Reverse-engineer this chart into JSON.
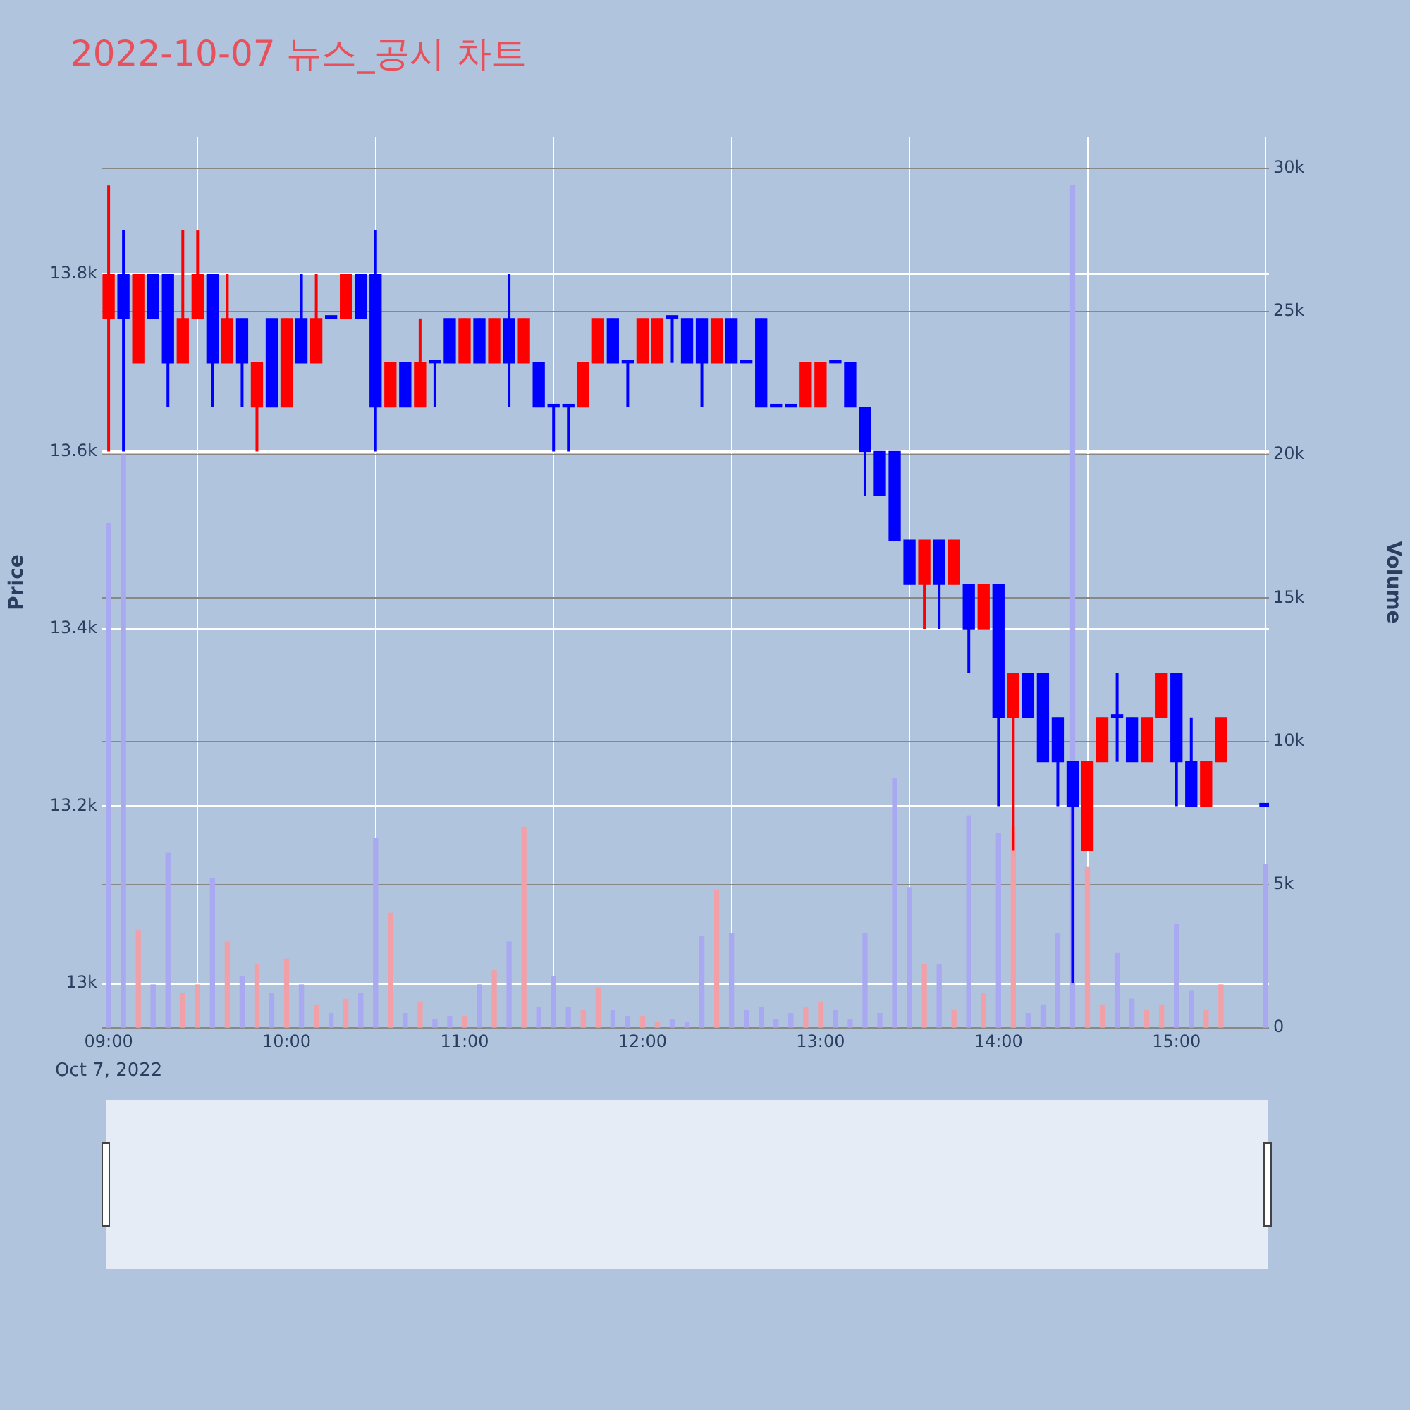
{
  "chart_data": {
    "type": "candlestick",
    "title": "2022-10-07 뉴스_공시 차트",
    "ylabel": "Price",
    "y2label": "Volume",
    "annotations": [
      "Oct 7, 2022"
    ],
    "grid": true,
    "xlim": [
      8.96,
      15.52
    ],
    "xticks": [
      {
        "value": 9,
        "label": "09:00"
      },
      {
        "value": 10,
        "label": "10:00"
      },
      {
        "value": 11,
        "label": "11:00"
      },
      {
        "value": 12,
        "label": "12:00"
      },
      {
        "value": 13,
        "label": "13:00"
      },
      {
        "value": 14,
        "label": "14:00"
      },
      {
        "value": 15,
        "label": "15:00"
      }
    ],
    "ylim": [
      12950,
      13955
    ],
    "yticks": [
      {
        "value": 13000,
        "label": "13k"
      },
      {
        "value": 13200,
        "label": "13.2k"
      },
      {
        "value": 13400,
        "label": "13.4k"
      },
      {
        "value": 13600,
        "label": "13.6k"
      },
      {
        "value": 13800,
        "label": "13.8k"
      }
    ],
    "y2lim": [
      0,
      31100
    ],
    "y2ticks": [
      0,
      {
        "value": 5000,
        "label": "5k"
      },
      {
        "value": 10000,
        "label": "10k"
      },
      {
        "value": 15000,
        "label": "15k"
      },
      {
        "value": 20000,
        "label": "20k"
      },
      {
        "value": 25000,
        "label": "25k"
      },
      {
        "value": 30000,
        "label": "30k"
      }
    ],
    "series": [
      {
        "x": [
          9,
          9.0833,
          9.1667,
          9.25,
          9.3333,
          9.4167,
          9.5,
          9.5833,
          9.6667,
          9.75,
          9.8333,
          9.9167,
          10,
          10.0833,
          10.1667,
          10.25,
          10.3333,
          10.4167,
          10.5,
          10.5833,
          10.6667,
          10.75,
          10.8333,
          10.9167,
          11,
          11.0833,
          11.1667,
          11.25,
          11.3333,
          11.4167,
          11.5,
          11.5833,
          11.6667,
          11.75,
          11.8333,
          11.9167,
          12,
          12.0833,
          12.1667,
          12.25,
          12.3333,
          12.4167,
          12.5,
          12.5833,
          12.6667,
          12.75,
          12.8333,
          12.9167,
          13,
          13.0833,
          13.1667,
          13.25,
          13.3333,
          13.4167,
          13.5,
          13.5833,
          13.6667,
          13.75,
          13.8333,
          13.9167,
          14,
          14.0833,
          14.1667,
          14.25,
          14.3333,
          14.4167,
          14.5,
          14.5833,
          14.6667,
          14.75,
          14.8333,
          14.9167,
          15,
          15.0833,
          15.1667,
          15.25,
          15.5
        ],
        "ohlc": [
          [
            13750,
            13900,
            13600,
            13800
          ],
          [
            13800,
            13850,
            13600,
            13750
          ],
          [
            13700,
            13800,
            13700,
            13800
          ],
          [
            13800,
            13800,
            13750,
            13750
          ],
          [
            13800,
            13800,
            13650,
            13700
          ],
          [
            13700,
            13850,
            13700,
            13750
          ],
          [
            13750,
            13850,
            13750,
            13800
          ],
          [
            13800,
            13800,
            13650,
            13700
          ],
          [
            13700,
            13800,
            13700,
            13750
          ],
          [
            13750,
            13750,
            13650,
            13700
          ],
          [
            13650,
            13700,
            13600,
            13700
          ],
          [
            13750,
            13750,
            13650,
            13650
          ],
          [
            13650,
            13750,
            13650,
            13750
          ],
          [
            13750,
            13800,
            13700,
            13700
          ],
          [
            13700,
            13800,
            13700,
            13750
          ],
          [
            13750,
            13750,
            13750,
            13750
          ],
          [
            13750,
            13800,
            13750,
            13800
          ],
          [
            13800,
            13800,
            13750,
            13750
          ],
          [
            13800,
            13850,
            13600,
            13650
          ],
          [
            13650,
            13700,
            13650,
            13700
          ],
          [
            13700,
            13700,
            13650,
            13650
          ],
          [
            13650,
            13750,
            13650,
            13700
          ],
          [
            13700,
            13700,
            13650,
            13700
          ],
          [
            13750,
            13750,
            13700,
            13700
          ],
          [
            13700,
            13750,
            13700,
            13750
          ],
          [
            13750,
            13750,
            13700,
            13700
          ],
          [
            13700,
            13750,
            13700,
            13750
          ],
          [
            13750,
            13800,
            13650,
            13700
          ],
          [
            13700,
            13750,
            13700,
            13750
          ],
          [
            13700,
            13700,
            13650,
            13650
          ],
          [
            13650,
            13650,
            13600,
            13650
          ],
          [
            13650,
            13650,
            13600,
            13650
          ],
          [
            13650,
            13700,
            13650,
            13700
          ],
          [
            13700,
            13750,
            13700,
            13750
          ],
          [
            13750,
            13750,
            13700,
            13700
          ],
          [
            13700,
            13700,
            13650,
            13700
          ],
          [
            13700,
            13750,
            13700,
            13750
          ],
          [
            13700,
            13750,
            13700,
            13750
          ],
          [
            13750,
            13750,
            13700,
            13750
          ],
          [
            13750,
            13750,
            13700,
            13700
          ],
          [
            13750,
            13750,
            13650,
            13700
          ],
          [
            13700,
            13750,
            13700,
            13750
          ],
          [
            13750,
            13750,
            13700,
            13700
          ],
          [
            13700,
            13700,
            13700,
            13700
          ],
          [
            13750,
            13750,
            13650,
            13650
          ],
          [
            13650,
            13650,
            13650,
            13650
          ],
          [
            13650,
            13650,
            13650,
            13650
          ],
          [
            13650,
            13700,
            13650,
            13700
          ],
          [
            13650,
            13700,
            13650,
            13700
          ],
          [
            13700,
            13700,
            13700,
            13700
          ],
          [
            13700,
            13700,
            13650,
            13650
          ],
          [
            13650,
            13650,
            13550,
            13600
          ],
          [
            13600,
            13600,
            13550,
            13550
          ],
          [
            13600,
            13600,
            13500,
            13500
          ],
          [
            13500,
            13500,
            13450,
            13450
          ],
          [
            13450,
            13500,
            13400,
            13500
          ],
          [
            13500,
            13500,
            13400,
            13450
          ],
          [
            13450,
            13500,
            13450,
            13500
          ],
          [
            13450,
            13450,
            13350,
            13400
          ],
          [
            13400,
            13450,
            13400,
            13450
          ],
          [
            13450,
            13450,
            13200,
            13300
          ],
          [
            13300,
            13350,
            13150,
            13350
          ],
          [
            13350,
            13350,
            13300,
            13300
          ],
          [
            13350,
            13350,
            13250,
            13250
          ],
          [
            13300,
            13300,
            13200,
            13250
          ],
          [
            13250,
            13250,
            13000,
            13200
          ],
          [
            13150,
            13250,
            13150,
            13250
          ],
          [
            13250,
            13300,
            13250,
            13300
          ],
          [
            13300,
            13350,
            13250,
            13300
          ],
          [
            13300,
            13300,
            13250,
            13250
          ],
          [
            13250,
            13300,
            13250,
            13300
          ],
          [
            13300,
            13350,
            13300,
            13350
          ],
          [
            13350,
            13350,
            13200,
            13250
          ],
          [
            13250,
            13300,
            13200,
            13200
          ],
          [
            13200,
            13250,
            13200,
            13250
          ],
          [
            13250,
            13300,
            13250,
            13300
          ],
          [
            13200,
            13200,
            13200,
            13200
          ]
        ],
        "colors": [
          "#ff0000",
          "#0000ff",
          "#ff0000",
          "#0000ff",
          "#0000ff",
          "#ff0000",
          "#ff0000",
          "#0000ff",
          "#ff0000",
          "#0000ff",
          "#ff0000",
          "#0000ff",
          "#ff0000",
          "#0000ff",
          "#ff0000",
          "#0000ff",
          "#ff0000",
          "#0000ff",
          "#0000ff",
          "#ff0000",
          "#0000ff",
          "#ff0000",
          "#0000ff",
          "#0000ff",
          "#ff0000",
          "#0000ff",
          "#ff0000",
          "#0000ff",
          "#ff0000",
          "#0000ff",
          "#0000ff",
          "#0000ff",
          "#ff0000",
          "#ff0000",
          "#0000ff",
          "#0000ff",
          "#ff0000",
          "#ff0000",
          "#0000ff",
          "#0000ff",
          "#0000ff",
          "#ff0000",
          "#0000ff",
          "#0000ff",
          "#0000ff",
          "#0000ff",
          "#0000ff",
          "#ff0000",
          "#ff0000",
          "#0000ff",
          "#0000ff",
          "#0000ff",
          "#0000ff",
          "#0000ff",
          "#0000ff",
          "#ff0000",
          "#0000ff",
          "#ff0000",
          "#0000ff",
          "#ff0000",
          "#0000ff",
          "#ff0000",
          "#0000ff",
          "#0000ff",
          "#0000ff",
          "#0000ff",
          "#ff0000",
          "#ff0000",
          "#0000ff",
          "#0000ff",
          "#ff0000",
          "#ff0000",
          "#0000ff",
          "#0000ff",
          "#ff0000",
          "#ff0000",
          "#0000ff"
        ]
      },
      {
        "type": "bar",
        "axis": "y2",
        "x": [
          9,
          9.0833,
          9.1667,
          9.25,
          9.3333,
          9.4167,
          9.5,
          9.5833,
          9.6667,
          9.75,
          9.8333,
          9.9167,
          10,
          10.0833,
          10.1667,
          10.25,
          10.3333,
          10.4167,
          10.5,
          10.5833,
          10.6667,
          10.75,
          10.8333,
          10.9167,
          11,
          11.0833,
          11.1667,
          11.25,
          11.3333,
          11.4167,
          11.5,
          11.5833,
          11.6667,
          11.75,
          11.8333,
          11.9167,
          12,
          12.0833,
          12.1667,
          12.25,
          12.3333,
          12.4167,
          12.5,
          12.5833,
          12.6667,
          12.75,
          12.8333,
          12.9167,
          13,
          13.0833,
          13.1667,
          13.25,
          13.3333,
          13.4167,
          13.5,
          13.5833,
          13.6667,
          13.75,
          13.8333,
          13.9167,
          14,
          14.0833,
          14.1667,
          14.25,
          14.3333,
          14.4167,
          14.5,
          14.5833,
          14.6667,
          14.75,
          14.8333,
          14.9167,
          15,
          15.0833,
          15.1667,
          15.25,
          15.5
        ],
        "values": [
          17600,
          20000,
          3400,
          1500,
          6100,
          1200,
          1500,
          5200,
          3000,
          1800,
          2200,
          1200,
          2400,
          1500,
          800,
          500,
          1000,
          1200,
          6600,
          4000,
          500,
          900,
          300,
          400,
          400,
          1500,
          2000,
          3000,
          7000,
          700,
          1800,
          700,
          600,
          1400,
          600,
          400,
          400,
          200,
          300,
          200,
          3200,
          4800,
          3300,
          600,
          700,
          300,
          500,
          700,
          900,
          600,
          300,
          3300,
          500,
          8700,
          4900,
          2200,
          2200,
          600,
          7400,
          1200,
          6800,
          7000,
          500,
          800,
          3300,
          29400,
          5600,
          800,
          2600,
          1000,
          600,
          800,
          3600,
          1300,
          600,
          1500,
          5700
        ],
        "colors": [
          "#a9a9f2",
          "#a9a9f2",
          "#f2a0a8",
          "#a9a9f2",
          "#a9a9f2",
          "#f2a0a8",
          "#f2a0a8",
          "#a9a9f2",
          "#f2a0a8",
          "#a9a9f2",
          "#f2a0a8",
          "#a9a9f2",
          "#f2a0a8",
          "#a9a9f2",
          "#f2a0a8",
          "#a9a9f2",
          "#f2a0a8",
          "#a9a9f2",
          "#a9a9f2",
          "#f2a0a8",
          "#a9a9f2",
          "#f2a0a8",
          "#a9a9f2",
          "#a9a9f2",
          "#f2a0a8",
          "#a9a9f2",
          "#f2a0a8",
          "#a9a9f2",
          "#f2a0a8",
          "#a9a9f2",
          "#a9a9f2",
          "#a9a9f2",
          "#f2a0a8",
          "#f2a0a8",
          "#a9a9f2",
          "#a9a9f2",
          "#f2a0a8",
          "#f2a0a8",
          "#a9a9f2",
          "#a9a9f2",
          "#a9a9f2",
          "#f2a0a8",
          "#a9a9f2",
          "#a9a9f2",
          "#a9a9f2",
          "#a9a9f2",
          "#a9a9f2",
          "#f2a0a8",
          "#f2a0a8",
          "#a9a9f2",
          "#a9a9f2",
          "#a9a9f2",
          "#a9a9f2",
          "#a9a9f2",
          "#a9a9f2",
          "#f2a0a8",
          "#a9a9f2",
          "#f2a0a8",
          "#a9a9f2",
          "#f2a0a8",
          "#a9a9f2",
          "#f2a0a8",
          "#a9a9f2",
          "#a9a9f2",
          "#a9a9f2",
          "#a9a9f2",
          "#f2a0a8",
          "#f2a0a8",
          "#a9a9f2",
          "#a9a9f2",
          "#f2a0a8",
          "#f2a0a8",
          "#a9a9f2",
          "#a9a9f2",
          "#f2a0a8",
          "#f2a0a8",
          "#a9a9f2"
        ]
      }
    ]
  }
}
